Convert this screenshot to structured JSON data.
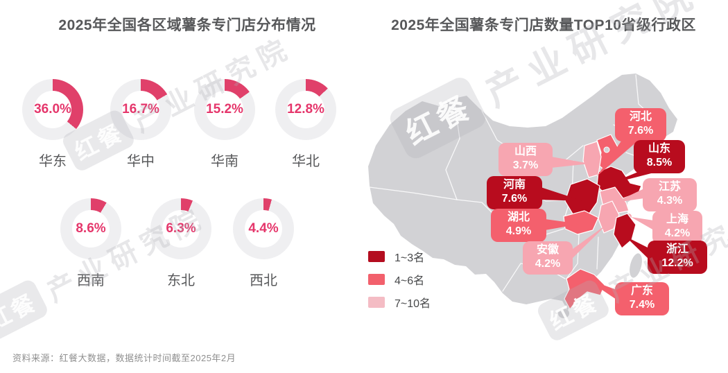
{
  "left_chart": {
    "title": "2025年全国各区域薯条专门店分布情况",
    "accent_color": "#e0406a",
    "ring_base_color": "#efeff1",
    "pct_text_color": "#e5366b",
    "regions": [
      {
        "name": "华东",
        "value": "36.0%",
        "pct": 36.0
      },
      {
        "name": "华中",
        "value": "16.7%",
        "pct": 16.7
      },
      {
        "name": "华南",
        "value": "15.2%",
        "pct": 15.2
      },
      {
        "name": "华北",
        "value": "12.8%",
        "pct": 12.8
      },
      {
        "name": "西南",
        "value": "8.6%",
        "pct": 8.6
      },
      {
        "name": "东北",
        "value": "6.3%",
        "pct": 6.3
      },
      {
        "name": "西北",
        "value": "4.4%",
        "pct": 4.4
      }
    ]
  },
  "right_chart": {
    "title": "2025年全国薯条专门店数量TOP10省级行政区",
    "map_base_color": "#d2d2d5",
    "tier_colors": {
      "1": "#b80c1e",
      "2": "#f4606d",
      "3": "#f7a6b1"
    },
    "legend": [
      {
        "label": "1~3名",
        "color": "#b40d1f"
      },
      {
        "label": "4~6名",
        "color": "#f2606c"
      },
      {
        "label": "7~10名",
        "color": "#f4bcc4"
      }
    ],
    "provinces": [
      {
        "name": "河北",
        "value": "7.6%",
        "pct": 7.6,
        "tier": 2
      },
      {
        "name": "山东",
        "value": "8.5%",
        "pct": 8.5,
        "tier": 1
      },
      {
        "name": "山西",
        "value": "3.7%",
        "pct": 3.7,
        "tier": 3
      },
      {
        "name": "河南",
        "value": "7.6%",
        "pct": 7.6,
        "tier": 1
      },
      {
        "name": "江苏",
        "value": "4.3%",
        "pct": 4.3,
        "tier": 3
      },
      {
        "name": "湖北",
        "value": "4.9%",
        "pct": 4.9,
        "tier": 2
      },
      {
        "name": "上海",
        "value": "4.2%",
        "pct": 4.2,
        "tier": 3
      },
      {
        "name": "安徽",
        "value": "4.2%",
        "pct": 4.2,
        "tier": 3
      },
      {
        "name": "浙江",
        "value": "12.2%",
        "pct": 12.2,
        "tier": 1
      },
      {
        "name": "广东",
        "value": "7.4%",
        "pct": 7.4,
        "tier": 2
      }
    ]
  },
  "footer": {
    "source": "资料来源：红餐大数据，数据统计时间截至2025年2月"
  },
  "watermark": {
    "logo": "红餐",
    "text": "产业研究院"
  },
  "chart_data": [
    {
      "type": "pie",
      "title": "2025年全国各区域薯条专门店分布情况",
      "categories": [
        "华东",
        "华中",
        "华南",
        "华北",
        "西南",
        "东北",
        "西北"
      ],
      "values": [
        36.0,
        16.7,
        15.2,
        12.8,
        8.6,
        6.3,
        4.4
      ],
      "unit": "%",
      "note": "seven individual donut gauges, one per region, segment starts at 12 o'clock clockwise"
    },
    {
      "type": "heatmap",
      "title": "2025年全国薯条专门店数量TOP10省级行政区",
      "categories": [
        "浙江",
        "山东",
        "河北",
        "河南",
        "广东",
        "湖北",
        "江苏",
        "上海",
        "安徽",
        "山西"
      ],
      "values": [
        12.2,
        8.5,
        7.6,
        7.6,
        7.4,
        4.9,
        4.3,
        4.2,
        4.2,
        3.7
      ],
      "unit": "%",
      "legend": [
        "1~3名",
        "4~6名",
        "7~10名"
      ],
      "legend_position": "bottom-left",
      "note": "China choropleth map, provinces shaded by rank tier with callout labels"
    }
  ]
}
